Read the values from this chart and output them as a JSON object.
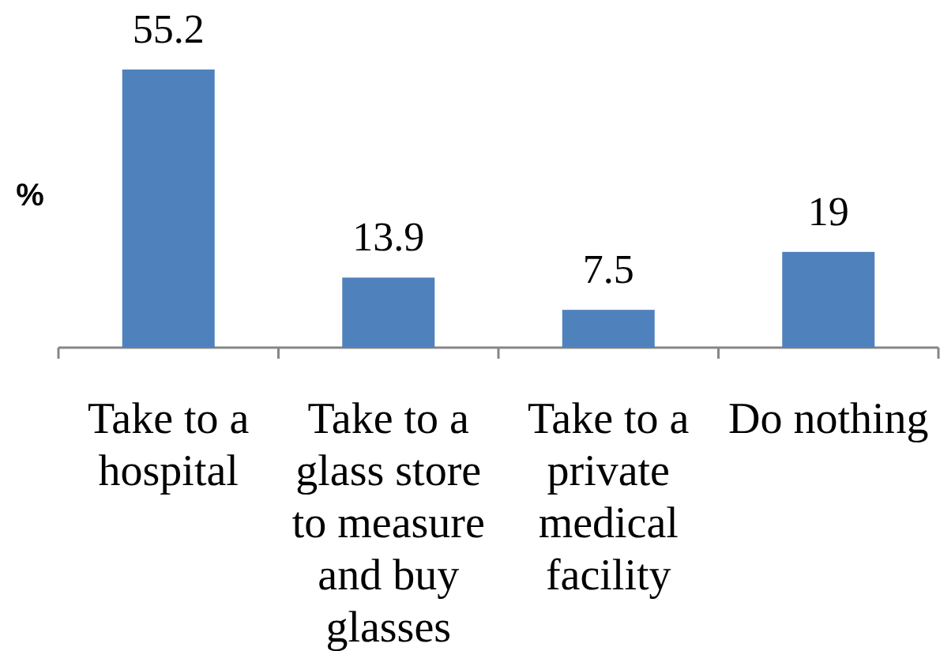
{
  "chart_data": {
    "type": "bar",
    "ylabel": "%",
    "categories": [
      "Take to a hospital",
      "Take to a glass store to measure and buy glasses",
      "Take to a private medical facility",
      "Do nothing"
    ],
    "values": [
      55.2,
      13.9,
      7.5,
      19
    ],
    "color": "#4f81bd",
    "data_labels": true,
    "tick_labels": "x"
  }
}
